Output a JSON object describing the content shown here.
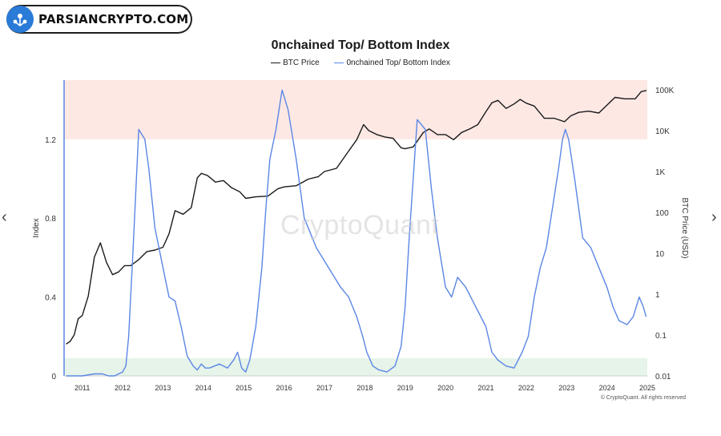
{
  "brand": {
    "name": "PARSIANCRYPTO.COM",
    "icon": "logo-mark-icon"
  },
  "watermark": "CryptoQuant",
  "copyright": "© CryptoQuant. All rights reserved",
  "nav": {
    "prev": "‹",
    "next": "›"
  },
  "chart_data": {
    "type": "line",
    "title": "0nchained Top/ Bottom Index",
    "legend_position": "top-center",
    "grid": false,
    "x_ticks": [
      "2011",
      "2012",
      "2013",
      "2014",
      "2015",
      "2016",
      "2017",
      "2018",
      "2019",
      "2020",
      "2021",
      "2022",
      "2023",
      "2024",
      "2025"
    ],
    "xlim": [
      2010.55,
      2025.0
    ],
    "left_axis": {
      "label": "Index",
      "ticks": [
        "0",
        "0.4",
        "0.8",
        "1.2"
      ],
      "range": [
        0,
        1.5
      ]
    },
    "right_axis": {
      "label": "BTC Price (USD)",
      "scale": "log",
      "ticks": [
        "0.01",
        "0.1",
        "1",
        "10",
        "100",
        "1K",
        "10K",
        "100K"
      ],
      "range": [
        0.01,
        100000
      ]
    },
    "zones": [
      {
        "name": "top",
        "from": 1.2,
        "to": 1.5,
        "color": "#fde8e4"
      },
      {
        "name": "bottom",
        "from": 0,
        "to": 0.09,
        "color": "#e6f4e9"
      }
    ],
    "series": [
      {
        "name": "BTC Price",
        "axis": "right",
        "color": "#1a1a1a",
        "x": [
          2010.6,
          2010.7,
          2010.8,
          2010.9,
          2011.0,
          2011.15,
          2011.3,
          2011.45,
          2011.6,
          2011.75,
          2011.9,
          2012.05,
          2012.2,
          2012.4,
          2012.6,
          2012.8,
          2013.0,
          2013.15,
          2013.3,
          2013.5,
          2013.7,
          2013.85,
          2013.95,
          2014.1,
          2014.3,
          2014.5,
          2014.7,
          2014.9,
          2015.05,
          2015.3,
          2015.6,
          2015.85,
          2016.0,
          2016.3,
          2016.6,
          2016.85,
          2017.0,
          2017.3,
          2017.55,
          2017.8,
          2017.97,
          2018.1,
          2018.3,
          2018.5,
          2018.7,
          2018.9,
          2019.0,
          2019.2,
          2019.45,
          2019.6,
          2019.8,
          2020.0,
          2020.2,
          2020.4,
          2020.6,
          2020.8,
          2021.0,
          2021.15,
          2021.3,
          2021.5,
          2021.7,
          2021.85,
          2022.0,
          2022.2,
          2022.45,
          2022.7,
          2022.95,
          2023.1,
          2023.3,
          2023.55,
          2023.8,
          2024.0,
          2024.2,
          2024.45,
          2024.7,
          2024.85,
          2024.98
        ],
        "y": [
          0.06,
          0.07,
          0.1,
          0.25,
          0.3,
          0.9,
          8,
          18,
          6,
          3,
          3.5,
          5,
          5,
          7,
          11,
          12,
          14,
          30,
          110,
          90,
          130,
          700,
          900,
          800,
          550,
          600,
          400,
          320,
          220,
          240,
          250,
          380,
          420,
          450,
          650,
          750,
          1000,
          1200,
          2700,
          6000,
          14000,
          10000,
          8000,
          7000,
          6500,
          3800,
          3600,
          4000,
          9000,
          11000,
          8000,
          8000,
          6000,
          9000,
          11000,
          14000,
          29000,
          48000,
          55000,
          35000,
          45000,
          58000,
          47000,
          40000,
          20000,
          20000,
          16500,
          23000,
          28000,
          30000,
          27000,
          42000,
          65000,
          60000,
          60000,
          90000,
          96000
        ]
      },
      {
        "name": "0nchained Top/ Bottom Index",
        "axis": "left",
        "color": "#5b86e5",
        "x": [
          2010.6,
          2011.0,
          2011.3,
          2011.5,
          2011.65,
          2011.8,
          2011.9,
          2012.0,
          2012.08,
          2012.15,
          2012.25,
          2012.4,
          2012.55,
          2012.65,
          2012.8,
          2013.0,
          2013.15,
          2013.3,
          2013.45,
          2013.6,
          2013.75,
          2013.85,
          2013.95,
          2014.05,
          2014.15,
          2014.4,
          2014.6,
          2014.75,
          2014.85,
          2014.95,
          2015.05,
          2015.15,
          2015.3,
          2015.45,
          2015.55,
          2015.65,
          2015.8,
          2015.95,
          2016.1,
          2016.3,
          2016.5,
          2016.8,
          2017.1,
          2017.4,
          2017.6,
          2017.8,
          2017.95,
          2018.05,
          2018.2,
          2018.35,
          2018.55,
          2018.75,
          2018.9,
          2019.0,
          2019.1,
          2019.3,
          2019.5,
          2019.65,
          2019.8,
          2020.0,
          2020.15,
          2020.3,
          2020.5,
          2020.75,
          2021.0,
          2021.15,
          2021.3,
          2021.5,
          2021.7,
          2021.9,
          2022.05,
          2022.2,
          2022.35,
          2022.5,
          2022.65,
          2022.8,
          2022.9,
          2022.97,
          2023.05,
          2023.2,
          2023.4,
          2023.6,
          2023.8,
          2024.0,
          2024.15,
          2024.3,
          2024.5,
          2024.65,
          2024.8,
          2024.9,
          2024.97
        ],
        "y": [
          0.0,
          0.0,
          0.01,
          0.01,
          0.0,
          0.0,
          0.01,
          0.02,
          0.05,
          0.2,
          0.6,
          1.25,
          1.2,
          1.05,
          0.75,
          0.55,
          0.4,
          0.38,
          0.25,
          0.1,
          0.05,
          0.03,
          0.06,
          0.04,
          0.04,
          0.06,
          0.04,
          0.08,
          0.12,
          0.04,
          0.02,
          0.08,
          0.25,
          0.55,
          0.85,
          1.1,
          1.25,
          1.45,
          1.35,
          1.1,
          0.8,
          0.65,
          0.55,
          0.45,
          0.4,
          0.3,
          0.2,
          0.12,
          0.05,
          0.03,
          0.02,
          0.05,
          0.15,
          0.35,
          0.7,
          1.3,
          1.25,
          0.95,
          0.7,
          0.45,
          0.4,
          0.5,
          0.45,
          0.35,
          0.25,
          0.12,
          0.08,
          0.05,
          0.04,
          0.12,
          0.2,
          0.4,
          0.55,
          0.65,
          0.85,
          1.05,
          1.2,
          1.25,
          1.2,
          1.0,
          0.7,
          0.65,
          0.55,
          0.45,
          0.35,
          0.28,
          0.26,
          0.3,
          0.4,
          0.35,
          0.3
        ]
      }
    ]
  }
}
